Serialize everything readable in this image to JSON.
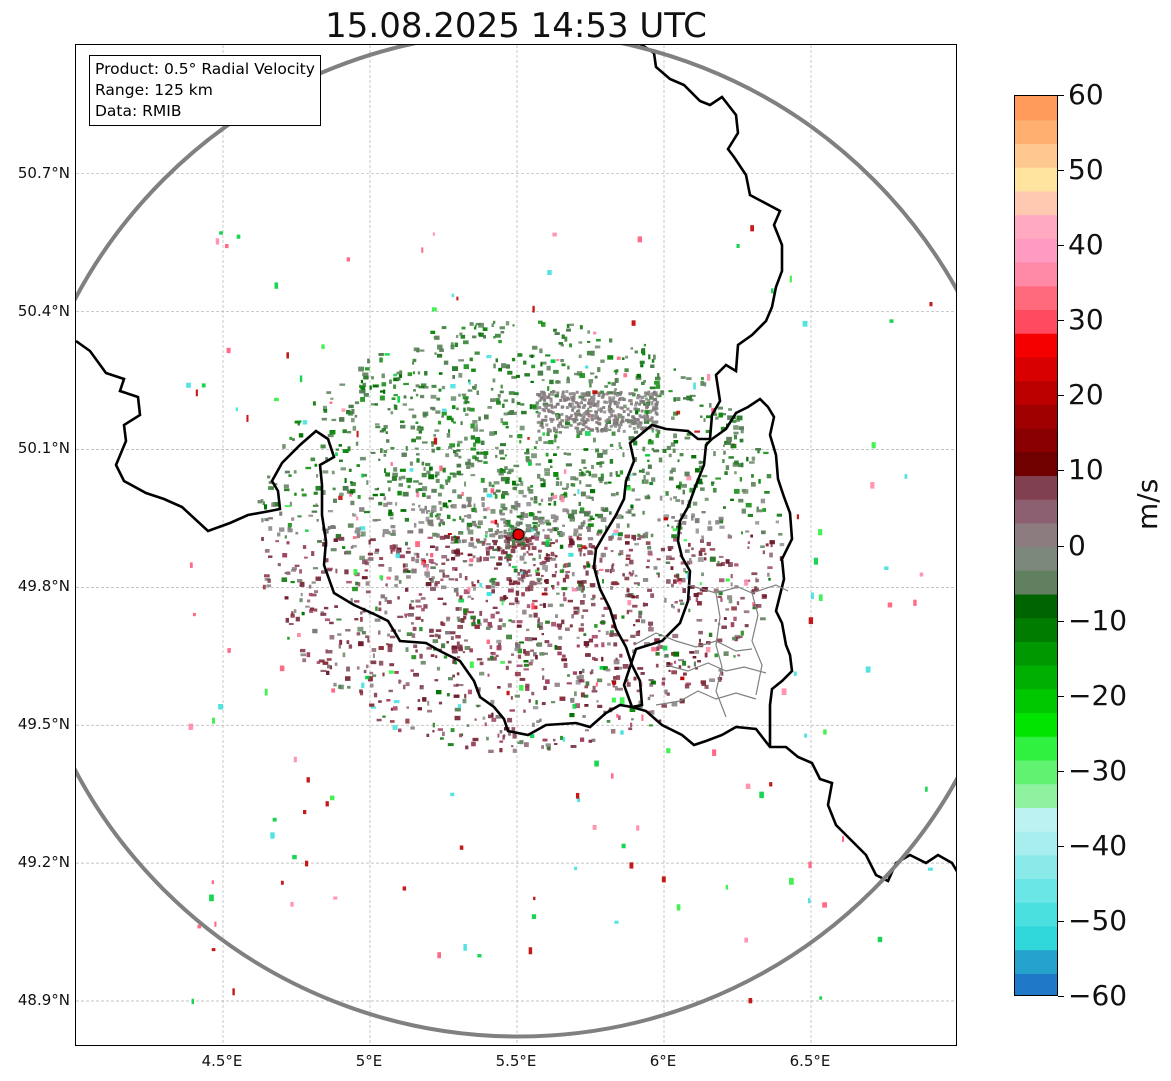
{
  "title": "15.08.2025 14:53 UTC",
  "info_box": {
    "product": "Product: 0.5° Radial Velocity",
    "range": "Range: 125 km",
    "source": "Data: RMIB"
  },
  "map": {
    "lon_range": [
      4.0,
      7.0
    ],
    "lat_range": [
      48.8,
      50.98
    ],
    "lat_ticks": [
      {
        "value": 50.7,
        "label": "50.7°N"
      },
      {
        "value": 50.4,
        "label": "50.4°N"
      },
      {
        "value": 50.1,
        "label": "50.1°N"
      },
      {
        "value": 49.8,
        "label": "49.8°N"
      },
      {
        "value": 49.5,
        "label": "49.5°N"
      },
      {
        "value": 49.2,
        "label": "49.2°N"
      },
      {
        "value": 48.9,
        "label": "48.9°N"
      }
    ],
    "lon_ticks": [
      {
        "value": 4.5,
        "label": "4.5°E"
      },
      {
        "value": 5.0,
        "label": "5°E"
      },
      {
        "value": 5.5,
        "label": "5.5°E"
      },
      {
        "value": 6.0,
        "label": "6°E"
      },
      {
        "value": 6.5,
        "label": "6.5°E"
      }
    ],
    "radar_site": {
      "lon": 5.505,
      "lat": 49.915
    },
    "range_km": 125,
    "gridlines": true,
    "colors": {
      "range_ring": "#808080",
      "border": "#000000",
      "admin_border": "#808080",
      "site_marker": "#e00000"
    }
  },
  "colorbar": {
    "unit": "m/s",
    "min": -60,
    "max": 60,
    "ticks": [
      {
        "value": 60,
        "label": "60"
      },
      {
        "value": 50,
        "label": "50"
      },
      {
        "value": 40,
        "label": "40"
      },
      {
        "value": 30,
        "label": "30"
      },
      {
        "value": 20,
        "label": "20"
      },
      {
        "value": 10,
        "label": "10"
      },
      {
        "value": 0,
        "label": "0"
      },
      {
        "value": -10,
        "label": "−10"
      },
      {
        "value": -20,
        "label": "−20"
      },
      {
        "value": -30,
        "label": "−30"
      },
      {
        "value": -40,
        "label": "−40"
      },
      {
        "value": -50,
        "label": "−50"
      },
      {
        "value": -60,
        "label": "−60"
      }
    ],
    "colors": [
      "#1f78c8",
      "#26a3cc",
      "#30d8dc",
      "#4ae0e0",
      "#6ae6e6",
      "#8aeaea",
      "#a8eeee",
      "#bdf2f2",
      "#8ef2a0",
      "#60f270",
      "#30f040",
      "#00e400",
      "#00c800",
      "#00b000",
      "#009800",
      "#007c00",
      "#006400",
      "#608060",
      "#7c887c",
      "#8c7c80",
      "#8c6070",
      "#804050",
      "#700000",
      "#8a0000",
      "#a00000",
      "#bc0000",
      "#d80000",
      "#f40000",
      "#ff4a60",
      "#ff6a7c",
      "#ff8aa8",
      "#ff9ac0",
      "#ffaac0",
      "#ffc8b0",
      "#ffe4a0",
      "#ffc890",
      "#ffb070",
      "#ff9a5a"
    ]
  }
}
